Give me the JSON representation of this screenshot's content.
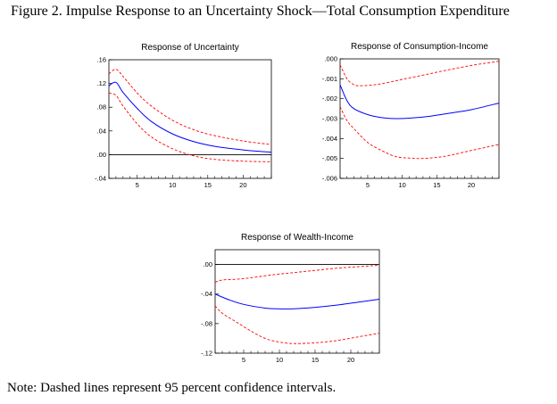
{
  "figure": {
    "title": "Figure 2. Impulse Response to an Uncertainty Shock—Total Consumption Expenditure",
    "note": "Note: Dashed lines represent 95 percent confidence intervals."
  },
  "colors": {
    "response": "#0000ff",
    "band": "#ff0000",
    "zero_line": "#000000"
  },
  "chart_data": [
    {
      "type": "line",
      "title": "Response of Uncertainty",
      "xlim": [
        1,
        24
      ],
      "ylim": [
        -0.04,
        0.16
      ],
      "xticks": [
        5,
        10,
        15,
        20
      ],
      "xtick_labels": [
        "5",
        "10",
        "15",
        "20"
      ],
      "yticks": [
        0.16,
        0.12,
        0.08,
        0.04,
        0.0,
        -0.04
      ],
      "ytick_labels": [
        ".16",
        ".12",
        ".08",
        ".04",
        ".00",
        "-.04"
      ],
      "zero_line": true,
      "grid": false,
      "series": [
        {
          "style": "solid",
          "x": [
            1,
            2,
            3,
            5,
            7,
            10,
            13,
            16,
            20,
            24
          ],
          "values": [
            0.116,
            0.122,
            0.105,
            0.078,
            0.056,
            0.035,
            0.022,
            0.014,
            0.008,
            0.004
          ]
        },
        {
          "style": "dashed",
          "x": [
            1,
            2,
            3,
            5,
            7,
            10,
            13,
            16,
            20,
            24
          ],
          "values": [
            0.136,
            0.144,
            0.132,
            0.104,
            0.082,
            0.058,
            0.042,
            0.032,
            0.023,
            0.017
          ]
        },
        {
          "style": "dashed",
          "x": [
            1,
            2,
            3,
            5,
            7,
            10,
            13,
            16,
            20,
            24
          ],
          "values": [
            0.104,
            0.1,
            0.082,
            0.052,
            0.03,
            0.01,
            -0.002,
            -0.008,
            -0.011,
            -0.012
          ]
        }
      ]
    },
    {
      "type": "line",
      "title": "Response of Consumption-Income",
      "xlim": [
        1,
        24
      ],
      "ylim": [
        -0.006,
        0.0
      ],
      "xticks": [
        5,
        10,
        15,
        20
      ],
      "xtick_labels": [
        "5",
        "10",
        "15",
        "20"
      ],
      "yticks": [
        0.0,
        -0.001,
        -0.002,
        -0.003,
        -0.004,
        -0.005,
        -0.006
      ],
      "ytick_labels": [
        ".000",
        "-.001",
        "-.002",
        "-.003",
        "-.004",
        "-.005",
        "-.006"
      ],
      "zero_line": false,
      "grid": false,
      "series": [
        {
          "style": "solid",
          "x": [
            1,
            2,
            3,
            5,
            7,
            9,
            11,
            14,
            17,
            20,
            24
          ],
          "values": [
            -0.0013,
            -0.0021,
            -0.0025,
            -0.0028,
            -0.00295,
            -0.003,
            -0.00298,
            -0.00288,
            -0.00272,
            -0.00255,
            -0.00222
          ]
        },
        {
          "style": "dashed",
          "x": [
            1,
            2,
            3,
            4,
            6,
            8,
            10,
            13,
            16,
            20,
            24
          ],
          "values": [
            -0.0003,
            -0.001,
            -0.0013,
            -0.00135,
            -0.0013,
            -0.00118,
            -0.00103,
            -0.00082,
            -0.0006,
            -0.00033,
            -0.00012
          ]
        },
        {
          "style": "dashed",
          "x": [
            1,
            2,
            3,
            5,
            7,
            9,
            11,
            13,
            16,
            20,
            24
          ],
          "values": [
            -0.0024,
            -0.0031,
            -0.0035,
            -0.0042,
            -0.0046,
            -0.0049,
            -0.00498,
            -0.005,
            -0.0049,
            -0.0046,
            -0.0043
          ]
        }
      ]
    },
    {
      "type": "line",
      "title": "Response of Wealth-Income",
      "xlim": [
        1,
        24
      ],
      "ylim": [
        -0.12,
        0.02
      ],
      "xticks": [
        5,
        10,
        15,
        20
      ],
      "xtick_labels": [
        "5",
        "10",
        "15",
        "20"
      ],
      "yticks": [
        0.0,
        -0.04,
        -0.08,
        -0.12
      ],
      "ytick_labels": [
        ".00",
        "-.04",
        "-.08",
        "-.12"
      ],
      "zero_line": true,
      "grid": false,
      "series": [
        {
          "style": "solid",
          "x": [
            1,
            3,
            5,
            8,
            10,
            12,
            15,
            18,
            21,
            24
          ],
          "values": [
            -0.04,
            -0.048,
            -0.054,
            -0.059,
            -0.06,
            -0.06,
            -0.058,
            -0.055,
            -0.051,
            -0.047
          ]
        },
        {
          "style": "dashed",
          "x": [
            1,
            2,
            4,
            6,
            9,
            12,
            15,
            18,
            21,
            24
          ],
          "values": [
            -0.024,
            -0.021,
            -0.02,
            -0.018,
            -0.014,
            -0.011,
            -0.008,
            -0.005,
            -0.003,
            -0.001
          ]
        },
        {
          "style": "dashed",
          "x": [
            1,
            2,
            4,
            6,
            8,
            10,
            12,
            15,
            18,
            21,
            24
          ],
          "values": [
            -0.056,
            -0.066,
            -0.078,
            -0.09,
            -0.1,
            -0.105,
            -0.107,
            -0.106,
            -0.103,
            -0.098,
            -0.093
          ]
        }
      ]
    }
  ]
}
